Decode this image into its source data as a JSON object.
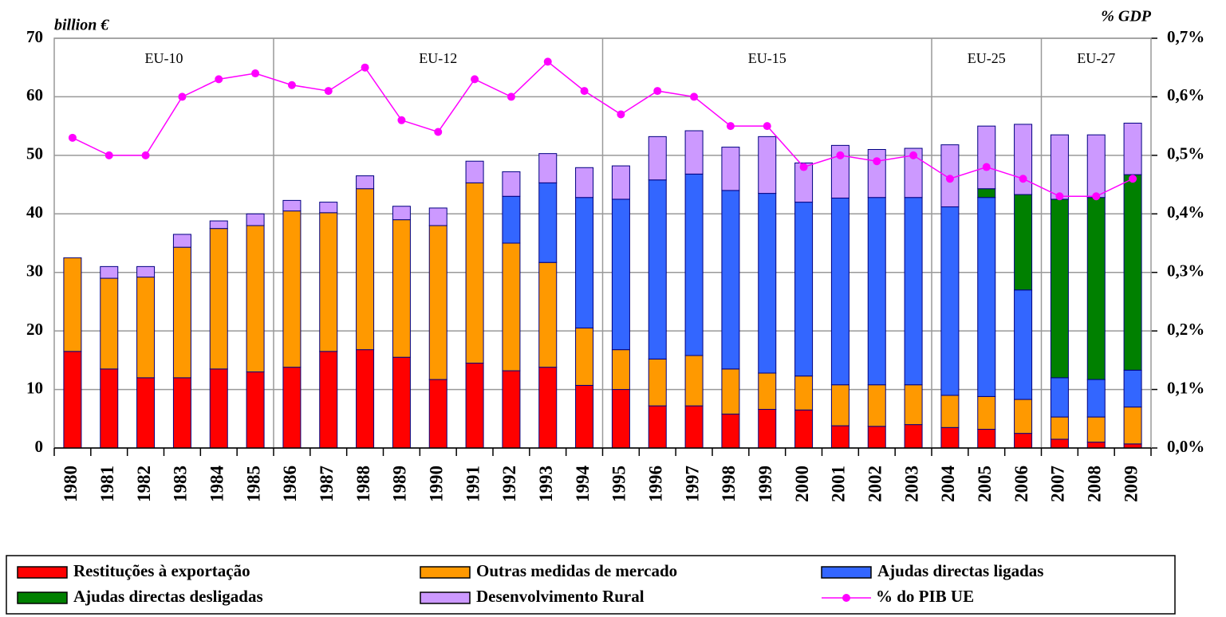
{
  "chart_data": {
    "type": "bar",
    "stacked": true,
    "ylabel": "billion €",
    "y2label": "% GDP",
    "categories": [
      "1980",
      "1981",
      "1982",
      "1983",
      "1984",
      "1985",
      "1986",
      "1987",
      "1988",
      "1989",
      "1990",
      "1991",
      "1992",
      "1993",
      "1994",
      "1995",
      "1996",
      "1997",
      "1998",
      "1999",
      "2000",
      "2001",
      "2002",
      "2003",
      "2004",
      "2005",
      "2006",
      "2007",
      "2008",
      "2009"
    ],
    "series": [
      {
        "name": "Restituções à exportação",
        "color": "#ff0000",
        "values": [
          16.5,
          13.5,
          12,
          12,
          13.5,
          13,
          13.8,
          16.5,
          16.8,
          15.5,
          11.7,
          14.5,
          13.2,
          13.8,
          10.7,
          10,
          7.2,
          7.2,
          5.8,
          6.6,
          6.5,
          3.8,
          3.7,
          4,
          3.5,
          3.2,
          2.5,
          1.5,
          1,
          0.7
        ]
      },
      {
        "name": "Outras medidas de mercado",
        "color": "#ff9900",
        "values": [
          16,
          15.5,
          17.2,
          22.3,
          24,
          25,
          26.7,
          23.7,
          27.5,
          23.5,
          26.3,
          30.8,
          21.8,
          17.9,
          9.8,
          6.8,
          8,
          8.6,
          7.7,
          6.2,
          5.8,
          7,
          7.1,
          6.8,
          5.5,
          5.6,
          5.8,
          3.8,
          4.3,
          6.3
        ]
      },
      {
        "name": "Ajudas directas ligadas",
        "color": "#3366ff",
        "values": [
          0,
          0,
          0,
          0,
          0,
          0,
          0,
          0,
          0,
          0,
          0,
          0,
          8,
          13.6,
          22.3,
          25.7,
          30.6,
          31,
          30.5,
          30.7,
          29.7,
          31.9,
          32,
          32,
          32.2,
          34,
          18.7,
          6.7,
          6.4,
          6.3
        ]
      },
      {
        "name": "Ajudas directas desligadas",
        "color": "#008000",
        "values": [
          0,
          0,
          0,
          0,
          0,
          0,
          0,
          0,
          0,
          0,
          0,
          0,
          0,
          0,
          0,
          0,
          0,
          0,
          0,
          0,
          0,
          0,
          0,
          0,
          0,
          1.5,
          16.3,
          30.5,
          31.1,
          33.4
        ]
      },
      {
        "name": "Desenvolvimento Rural",
        "color": "#cc99ff",
        "values": [
          0,
          2,
          1.8,
          2.2,
          1.3,
          2,
          1.8,
          1.8,
          2.2,
          2.3,
          3,
          3.7,
          4.2,
          5,
          5.1,
          5.7,
          7.4,
          7.4,
          7.4,
          9.7,
          6.7,
          9,
          8.2,
          8.4,
          10.6,
          10.7,
          12,
          11,
          10.7,
          8.8
        ]
      },
      {
        "name": "% do PIB UE",
        "color": "#ff00ff",
        "type": "line",
        "axis": "y2",
        "values": [
          0.53,
          0.5,
          0.5,
          0.6,
          0.63,
          0.64,
          0.62,
          0.61,
          0.65,
          0.56,
          0.54,
          0.63,
          0.6,
          0.66,
          0.61,
          0.57,
          0.61,
          0.6,
          0.55,
          0.55,
          0.48,
          0.5,
          0.49,
          0.5,
          0.46,
          0.48,
          0.46,
          0.43,
          0.43,
          0.46
        ]
      }
    ],
    "eras": [
      {
        "label": "EU-10",
        "from": "1980",
        "to": "1985"
      },
      {
        "label": "EU-12",
        "from": "1986",
        "to": "1994"
      },
      {
        "label": "EU-15",
        "from": "1995",
        "to": "2003"
      },
      {
        "label": "EU-25",
        "from": "2004",
        "to": "2006"
      },
      {
        "label": "EU-27",
        "from": "2007",
        "to": "2009"
      }
    ],
    "ylim": [
      0,
      70
    ],
    "yticks": [
      0,
      10,
      20,
      30,
      40,
      50,
      60,
      70
    ],
    "y2lim": [
      0,
      0.7
    ],
    "y2ticks": [
      {
        "value": 0,
        "label": "0,0%"
      },
      {
        "value": 0.1,
        "label": "0,1%"
      },
      {
        "value": 0.2,
        "label": "0,2%"
      },
      {
        "value": 0.3,
        "label": "0,3%"
      },
      {
        "value": 0.4,
        "label": "0,4%"
      },
      {
        "value": 0.5,
        "label": "0,5%"
      },
      {
        "value": 0.6,
        "label": "0,6%"
      },
      {
        "value": 0.7,
        "label": "0,7%"
      }
    ],
    "grid": true
  }
}
